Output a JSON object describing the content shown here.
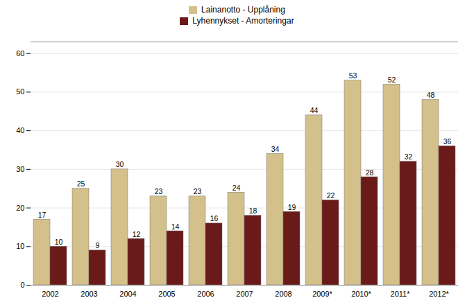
{
  "chart_data": {
    "type": "bar",
    "categories": [
      "2002",
      "2003",
      "2004",
      "2005",
      "2006",
      "2007",
      "2008",
      "2009*",
      "2010*",
      "2011*",
      "2012*"
    ],
    "series": [
      {
        "name": "Lainanotto - Upplåning",
        "color": "#D4C08A",
        "values": [
          17,
          25,
          30,
          23,
          23,
          24,
          34,
          44,
          53,
          52,
          48
        ]
      },
      {
        "name": "Lyhennykset - Amorteringar",
        "color": "#6B1A1A",
        "values": [
          10,
          9,
          12,
          14,
          16,
          18,
          19,
          22,
          28,
          32,
          36
        ]
      }
    ],
    "ylim": [
      0,
      63
    ],
    "yticks": [
      0,
      10,
      20,
      30,
      40,
      50,
      60
    ],
    "grid": true,
    "data_labels": true,
    "legend": "top"
  }
}
